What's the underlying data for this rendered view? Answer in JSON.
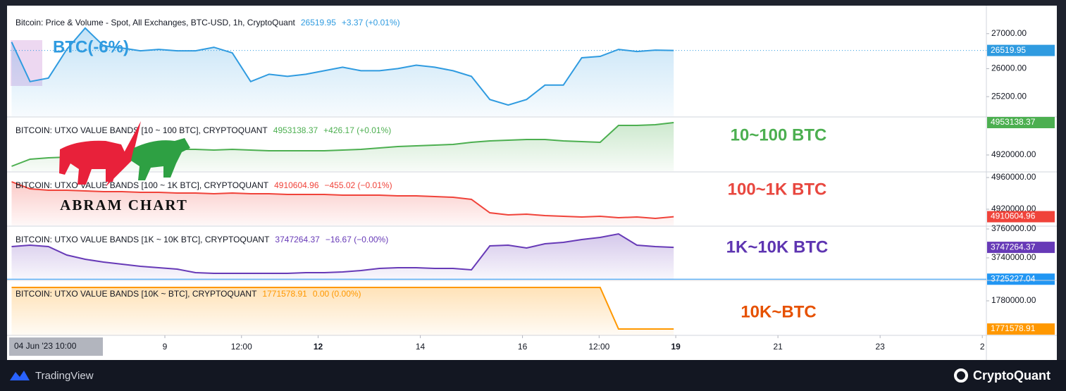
{
  "logo": "ABRAM CHART",
  "footer": {
    "left": "TradingView",
    "right": "CryptoQuant"
  },
  "chart_data": [
    {
      "type": "line",
      "title": "Bitcoin: Price & Volume - Spot, All Exchanges, BTC-USD, 1h, CryptoQuant",
      "last_value": 26519.95,
      "change": "+3.37 (+0.01%)",
      "color": "#2f9be0",
      "annotation": "BTC(-6%)",
      "ylim": [
        24640,
        27760
      ],
      "yticks": [
        {
          "value": 27000,
          "label": "27000.00"
        },
        {
          "value": 26000,
          "label": "26000.00"
        },
        {
          "value": 25200,
          "label": "25200.00"
        }
      ],
      "xlim": [
        5.98,
        25.08
      ],
      "x": [
        6,
        6.36,
        6.72,
        7.08,
        7.44,
        7.8,
        8.16,
        8.52,
        8.88,
        9.24,
        9.6,
        9.96,
        10.32,
        10.68,
        11.04,
        11.4,
        11.76,
        12.12,
        12.48,
        12.84,
        13.2,
        13.56,
        13.92,
        14.28,
        14.64,
        15,
        15.36,
        15.72,
        16.08,
        16.44,
        16.8,
        17.16,
        17.52,
        17.88,
        18.24,
        18.6,
        18.96
      ],
      "values": [
        26760,
        25630,
        25730,
        26550,
        27160,
        26650,
        26590,
        26510,
        26550,
        26510,
        26510,
        26610,
        26450,
        25630,
        25840,
        25780,
        25840,
        25940,
        26040,
        25940,
        25940,
        26000,
        26100,
        26040,
        25940,
        25780,
        25120,
        24960,
        25120,
        25530,
        25530,
        26310,
        26350,
        26550,
        26490,
        26530,
        26519.95
      ]
    },
    {
      "type": "line",
      "title": "BITCOIN: UTXO VALUE BANDS [10 ~ 100 BTC], CRYPTOQUANT",
      "last_value": 4953138.37,
      "change": "+426.17 (+0.01%)",
      "color": "#4caf50",
      "annotation": "10~100 BTC",
      "ylim": [
        4903400,
        4958900
      ],
      "yticks": [
        {
          "value": 4920000,
          "label": "4920000.00"
        }
      ],
      "xlim": [
        5.98,
        25.08
      ],
      "x": [
        6,
        6.36,
        6.72,
        7.08,
        7.44,
        7.8,
        8.16,
        8.52,
        8.88,
        9.24,
        9.6,
        9.96,
        10.32,
        10.68,
        11.04,
        11.4,
        11.76,
        12.12,
        12.48,
        12.84,
        13.2,
        13.56,
        13.92,
        14.28,
        14.64,
        15,
        15.36,
        15.72,
        16.08,
        16.44,
        16.8,
        17.16,
        17.52,
        17.88,
        18.24,
        18.6,
        18.96
      ],
      "values": [
        4908480,
        4915680,
        4917120,
        4917840,
        4918560,
        4920000,
        4921440,
        4922880,
        4924320,
        4925760,
        4925760,
        4925040,
        4925760,
        4925040,
        4924320,
        4924320,
        4924320,
        4924320,
        4925040,
        4925760,
        4927200,
        4928640,
        4929360,
        4930080,
        4930800,
        4932960,
        4934400,
        4935120,
        4935840,
        4935840,
        4934400,
        4933680,
        4932960,
        4950240,
        4950240,
        4950960,
        4953138.37
      ]
    },
    {
      "type": "line",
      "title": "BITCOIN: UTXO VALUE BANDS [100 ~ 1K BTC], CRYPTOQUANT",
      "last_value": 4910604.96,
      "change": "−455.02 (−0.01%)",
      "color": "#f0433a",
      "annotation": "100~1K BTC",
      "ylim": [
        4899550,
        4967100
      ],
      "yticks": [
        {
          "value": 4960000,
          "label": "4960000.00"
        },
        {
          "value": 4920000,
          "label": "4920000.00"
        }
      ],
      "xlim": [
        5.98,
        25.08
      ],
      "x": [
        6,
        6.36,
        6.72,
        7.08,
        7.44,
        7.8,
        8.16,
        8.52,
        8.88,
        9.24,
        9.6,
        9.96,
        10.32,
        10.68,
        11.04,
        11.4,
        11.76,
        12.12,
        12.48,
        12.84,
        13.2,
        13.56,
        13.92,
        14.28,
        14.64,
        15,
        15.36,
        15.72,
        16.08,
        16.44,
        16.8,
        17.16,
        17.52,
        17.88,
        18.24,
        18.6,
        18.96
      ],
      "values": [
        4954670,
        4945780,
        4944000,
        4944000,
        4943110,
        4942220,
        4942220,
        4941330,
        4941330,
        4940440,
        4940440,
        4939550,
        4940440,
        4939550,
        4939550,
        4938660,
        4938660,
        4938660,
        4937780,
        4937780,
        4937780,
        4936890,
        4936890,
        4936000,
        4935110,
        4932440,
        4915550,
        4912880,
        4913770,
        4911990,
        4911110,
        4910220,
        4911110,
        4909330,
        4910220,
        4908440,
        4910604.96
      ]
    },
    {
      "type": "line",
      "title": "BITCOIN: UTXO VALUE BANDS [1K ~ 10K BTC], CRYPTOQUANT",
      "last_value": 3747264.37,
      "change": "−16.67 (−0.00%)",
      "color": "#673ab7",
      "annotation": "1K~10K BTC",
      "price_line": 3725227.04,
      "ylim": [
        3724870,
        3761950
      ],
      "yticks": [
        {
          "value": 3760000,
          "label": "3760000.00"
        },
        {
          "value": 3740000,
          "label": "3740000.00"
        }
      ],
      "xlim": [
        5.98,
        25.08
      ],
      "x": [
        6,
        6.36,
        6.72,
        7.08,
        7.44,
        7.8,
        8.16,
        8.52,
        8.88,
        9.24,
        9.6,
        9.96,
        10.32,
        10.68,
        11.04,
        11.4,
        11.76,
        12.12,
        12.48,
        12.84,
        13.2,
        13.56,
        13.92,
        14.28,
        14.64,
        15,
        15.36,
        15.72,
        16.08,
        16.44,
        16.8,
        17.16,
        17.52,
        17.88,
        18.24,
        18.6,
        18.96
      ],
      "values": [
        3747800,
        3748780,
        3747800,
        3741940,
        3739020,
        3737060,
        3735600,
        3734140,
        3733160,
        3732180,
        3729740,
        3729260,
        3729260,
        3729260,
        3729260,
        3729260,
        3729740,
        3729740,
        3730230,
        3731210,
        3732670,
        3733160,
        3733160,
        3732670,
        3732670,
        3731700,
        3748290,
        3748780,
        3746820,
        3749750,
        3750730,
        3752680,
        3754140,
        3756580,
        3748780,
        3747800,
        3747264.37
      ]
    },
    {
      "type": "line",
      "title": "BITCOIN: UTXO VALUE BANDS [10K ~ BTC], CRYPTOQUANT",
      "last_value": 1771578.91,
      "change": "0.00 (0.00%)",
      "color": "#ff9800",
      "annotation": "10K~BTC",
      "ylim": [
        1769690,
        1786100
      ],
      "yticks": [
        {
          "value": 1780000,
          "label": "1780000.00"
        }
      ],
      "xlim": [
        5.98,
        25.08
      ],
      "cursor_label": "04 Jun '23   10:00",
      "xticks": [
        9,
        {
          "value": 10.5,
          "label": "12:00"
        },
        12,
        14,
        16,
        {
          "value": 17.5,
          "label": "12:00"
        },
        19,
        21,
        23,
        {
          "value": 25,
          "label": "2"
        }
      ],
      "x": [
        6,
        6.36,
        6.72,
        7.08,
        7.44,
        7.8,
        8.16,
        8.52,
        8.88,
        9.24,
        9.6,
        9.96,
        10.32,
        10.68,
        11.04,
        11.4,
        11.76,
        12.12,
        12.48,
        12.84,
        13.2,
        13.56,
        13.92,
        14.28,
        14.64,
        15,
        15.36,
        15.72,
        16.08,
        16.44,
        16.8,
        17.16,
        17.52,
        17.88,
        18.24,
        18.6,
        18.96
      ],
      "values": [
        1784000,
        1784000,
        1784000,
        1784000,
        1784000,
        1784000,
        1784000,
        1784000,
        1784000,
        1784000,
        1784000,
        1784000,
        1784000,
        1784000,
        1784000,
        1784000,
        1784000,
        1784000,
        1784000,
        1784000,
        1784000,
        1784000,
        1784000,
        1784000,
        1784000,
        1784000,
        1784000,
        1784000,
        1784000,
        1784000,
        1784000,
        1784000,
        1784000,
        1771578.91,
        1771578.91,
        1771578.91,
        1771578.91
      ]
    }
  ]
}
